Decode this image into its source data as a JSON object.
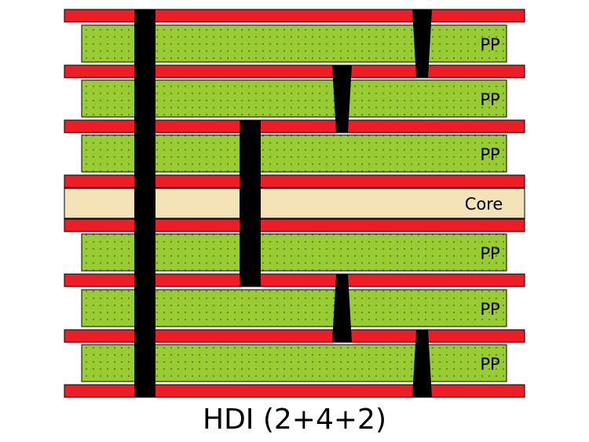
{
  "caption": "HDI (2+4+2)",
  "layers": [
    {
      "kind": "copper"
    },
    {
      "kind": "prepreg",
      "label": "PP"
    },
    {
      "kind": "copper"
    },
    {
      "kind": "prepreg",
      "label": "PP"
    },
    {
      "kind": "copper"
    },
    {
      "kind": "prepreg",
      "label": "PP"
    },
    {
      "kind": "copper"
    },
    {
      "kind": "core",
      "label": "Core"
    },
    {
      "kind": "copper"
    },
    {
      "kind": "prepreg",
      "label": "PP"
    },
    {
      "kind": "copper"
    },
    {
      "kind": "prepreg",
      "label": "PP"
    },
    {
      "kind": "copper"
    },
    {
      "kind": "prepreg",
      "label": "PP"
    },
    {
      "kind": "copper"
    }
  ],
  "colors": {
    "copper": "#ee1c25",
    "prepreg": "#99cc33",
    "core": "#f3e3b7",
    "via": "#000000",
    "outline": "#000000"
  }
}
